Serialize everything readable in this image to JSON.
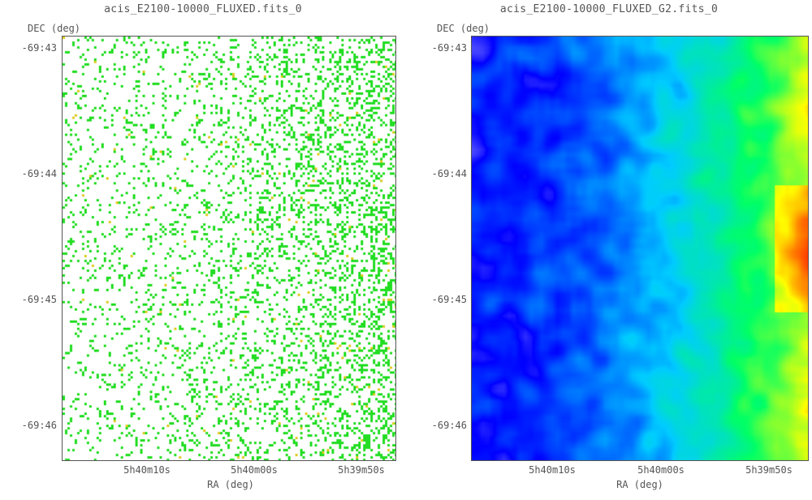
{
  "panels": [
    {
      "title": "acis_E2100-10000_FLUXED.fits_0",
      "y_axis_title": "DEC (deg)",
      "x_axis_title": "RA (deg)",
      "y_ticks": [
        "-69:43",
        "-69:44",
        "-69:45",
        "-69:46"
      ],
      "x_ticks": [
        "5h40m10s",
        "5h40m00s",
        "5h39m50s"
      ],
      "render": "sparse-counts"
    },
    {
      "title": "acis_E2100-10000_FLUXED_G2.fits_0",
      "y_axis_title": "DEC (deg)",
      "x_axis_title": "RA (deg)",
      "y_ticks": [
        "-69:43",
        "-69:44",
        "-69:45",
        "-69:46"
      ],
      "x_ticks": [
        "5h40m10s",
        "5h40m00s",
        "5h39m50s"
      ],
      "render": "smoothed-heatmap"
    }
  ],
  "colors": {
    "count_primary": "#22dd22",
    "count_secondary": "#ddcc22",
    "colormap": [
      "#ffffff",
      "#0000ff",
      "#00ccff",
      "#00ff66",
      "#ffff00",
      "#ff0000"
    ]
  }
}
